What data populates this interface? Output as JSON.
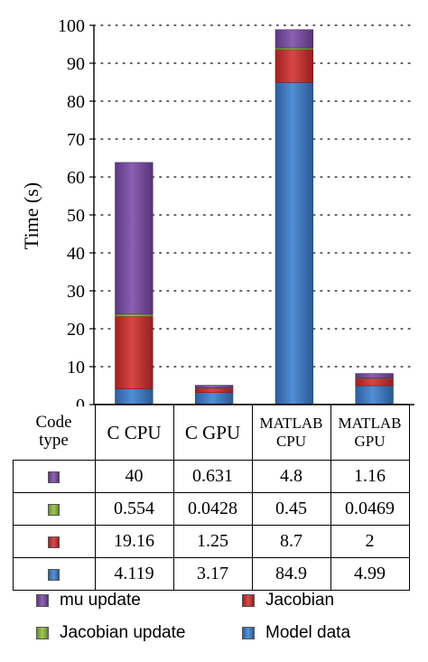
{
  "chart_data": {
    "type": "bar",
    "stacked": true,
    "ylabel": "Time (s)",
    "ylim": [
      0,
      100
    ],
    "yticks": [
      0,
      10,
      20,
      30,
      40,
      50,
      60,
      70,
      80,
      90,
      100
    ],
    "grid": "horizontal dotted",
    "categories": [
      "C CPU",
      "C GPU",
      "MATLAB CPU",
      "MATLAB GPU"
    ],
    "series": [
      {
        "name": "Model data",
        "color": "#3a7fd0",
        "values": [
          4.119,
          3.17,
          84.9,
          4.99
        ]
      },
      {
        "name": "Jacobian",
        "color": "#d42c2c",
        "values": [
          19.16,
          1.25,
          8.7,
          2
        ]
      },
      {
        "name": "Jacobian update",
        "color": "#8fbe3a",
        "values": [
          0.554,
          0.0428,
          0.45,
          0.0469
        ]
      },
      {
        "name": "mu update",
        "color": "#7b4aaa",
        "values": [
          40,
          0.631,
          4.8,
          1.16
        ]
      }
    ],
    "legend_position": "bottom"
  },
  "table": {
    "header_label": "Code type",
    "header_lines": [
      "Code",
      "type"
    ],
    "columns": [
      {
        "lines": [
          "C CPU"
        ],
        "small": false
      },
      {
        "lines": [
          "C GPU"
        ],
        "small": false
      },
      {
        "lines": [
          "MATLAB",
          "CPU"
        ],
        "small": true
      },
      {
        "lines": [
          "MATLAB",
          "GPU"
        ],
        "small": true
      }
    ],
    "rows": [
      {
        "series": "mu update",
        "color": "#7b4aaa",
        "cells": [
          "40",
          "0.631",
          "4.8",
          "1.16"
        ]
      },
      {
        "series": "Jacobian update",
        "color": "#8fbe3a",
        "cells": [
          "0.554",
          "0.0428",
          "0.45",
          "0.0469"
        ]
      },
      {
        "series": "Jacobian",
        "color": "#d42c2c",
        "cells": [
          "19.16",
          "1.25",
          "8.7",
          "2"
        ]
      },
      {
        "series": "Model data",
        "color": "#3a7fd0",
        "cells": [
          "4.119",
          "3.17",
          "84.9",
          "4.99"
        ]
      }
    ]
  },
  "legend": [
    {
      "label": "mu update",
      "color": "#7b4aaa"
    },
    {
      "label": "Jacobian",
      "color": "#d42c2c"
    },
    {
      "label": "Jacobian update",
      "color": "#8fbe3a"
    },
    {
      "label": "Model data",
      "color": "#3a7fd0"
    }
  ]
}
